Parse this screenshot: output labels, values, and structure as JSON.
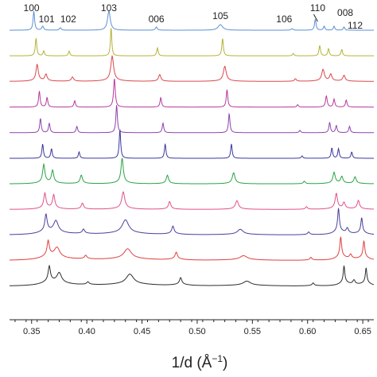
{
  "chart_data": {
    "type": "line",
    "title": "",
    "xlabel": "1/d (Å",
    "xlabel_sup": "−1",
    "xlabel_close": ")",
    "ylabel": "",
    "xlim": [
      0.33,
      0.66
    ],
    "x_ticks": [
      0.35,
      0.4,
      0.45,
      0.5,
      0.55,
      0.6,
      0.65
    ],
    "x_tick_labels": [
      "0.35",
      "0.40",
      "0.45",
      "0.50",
      "0.55",
      "0.60",
      "0.65"
    ],
    "grid": false,
    "legend": "none",
    "peak_labels": [
      {
        "text": "100",
        "x": 0.352
      },
      {
        "text": "101",
        "x": 0.36
      },
      {
        "text": "102",
        "x": 0.376
      },
      {
        "text": "103",
        "x": 0.42
      },
      {
        "text": "006",
        "x": 0.463
      },
      {
        "text": "105",
        "x": 0.521
      },
      {
        "text": "106",
        "x": 0.586
      },
      {
        "text": "110",
        "x": 0.607
      },
      {
        "text": "008",
        "x": 0.624
      },
      {
        "text": "112",
        "x": 0.633
      }
    ],
    "series": [
      {
        "color": "#5b8fd4",
        "baseline": 10,
        "broad": 0.0,
        "peaks": [
          [
            0.352,
            24,
            0.0008
          ],
          [
            0.36,
            5,
            0.001
          ],
          [
            0.376,
            3,
            0.001
          ],
          [
            0.42,
            24,
            0.0015
          ],
          [
            0.463,
            4,
            0.001
          ],
          [
            0.521,
            7,
            0.0025
          ],
          [
            0.586,
            2,
            0.001
          ],
          [
            0.607,
            14,
            0.0008
          ],
          [
            0.615,
            5,
            0.0008
          ],
          [
            0.624,
            5,
            0.0008
          ],
          [
            0.633,
            4,
            0.0008
          ]
        ]
      },
      {
        "color": "#b5b236",
        "baseline": 9,
        "broad": 0.0,
        "peaks": [
          [
            0.354,
            22,
            0.0008
          ],
          [
            0.361,
            6,
            0.0008
          ],
          [
            0.384,
            6,
            0.0008
          ],
          [
            0.422,
            36,
            0.0007
          ],
          [
            0.464,
            10,
            0.0008
          ],
          [
            0.523,
            22,
            0.0008
          ],
          [
            0.587,
            3,
            0.0008
          ],
          [
            0.611,
            13,
            0.0008
          ],
          [
            0.619,
            9,
            0.0008
          ],
          [
            0.631,
            8,
            0.0008
          ]
        ]
      },
      {
        "color": "#d9484c",
        "baseline": 9,
        "broad": 0.06,
        "peaks": [
          [
            0.355,
            20,
            0.0012
          ],
          [
            0.363,
            8,
            0.0012
          ],
          [
            0.387,
            5,
            0.0012
          ],
          [
            0.423,
            30,
            0.0015
          ],
          [
            0.466,
            8,
            0.0012
          ],
          [
            0.525,
            18,
            0.0015
          ],
          [
            0.589,
            3,
            0.001
          ],
          [
            0.614,
            14,
            0.0014
          ],
          [
            0.621,
            8,
            0.0012
          ],
          [
            0.633,
            7,
            0.0012
          ]
        ]
      },
      {
        "color": "#b8399c",
        "baseline": 9,
        "broad": 0.0,
        "peaks": [
          [
            0.357,
            20,
            0.0008
          ],
          [
            0.364,
            12,
            0.0008
          ],
          [
            0.389,
            8,
            0.0008
          ],
          [
            0.425,
            36,
            0.0009
          ],
          [
            0.467,
            12,
            0.0008
          ],
          [
            0.527,
            22,
            0.0008
          ],
          [
            0.591,
            3,
            0.0008
          ],
          [
            0.617,
            14,
            0.0009
          ],
          [
            0.624,
            10,
            0.0008
          ],
          [
            0.635,
            9,
            0.0008
          ]
        ]
      },
      {
        "color": "#8e44ad",
        "baseline": 9,
        "broad": 0.0,
        "peaks": [
          [
            0.358,
            18,
            0.0008
          ],
          [
            0.366,
            12,
            0.0008
          ],
          [
            0.391,
            8,
            0.0008
          ],
          [
            0.427,
            35,
            0.0008
          ],
          [
            0.469,
            12,
            0.0008
          ],
          [
            0.529,
            24,
            0.0008
          ],
          [
            0.593,
            3,
            0.0008
          ],
          [
            0.62,
            13,
            0.0008
          ],
          [
            0.626,
            9,
            0.0008
          ],
          [
            0.638,
            8,
            0.0008
          ]
        ]
      },
      {
        "color": "#3a37a0",
        "baseline": 9,
        "broad": 0.0,
        "peaks": [
          [
            0.36,
            18,
            0.0008
          ],
          [
            0.368,
            12,
            0.0008
          ],
          [
            0.393,
            8,
            0.0008
          ],
          [
            0.43,
            36,
            0.0008
          ],
          [
            0.471,
            18,
            0.0008
          ],
          [
            0.531,
            18,
            0.0008
          ],
          [
            0.595,
            3,
            0.0008
          ],
          [
            0.622,
            13,
            0.0008
          ],
          [
            0.628,
            12,
            0.0008
          ],
          [
            0.64,
            8,
            0.0008
          ]
        ]
      },
      {
        "color": "#2aa246",
        "baseline": 9,
        "broad": 0.08,
        "peaks": [
          [
            0.361,
            22,
            0.0012
          ],
          [
            0.369,
            15,
            0.0012
          ],
          [
            0.395,
            10,
            0.0012
          ],
          [
            0.432,
            30,
            0.0012
          ],
          [
            0.473,
            10,
            0.0012
          ],
          [
            0.533,
            13,
            0.0014
          ],
          [
            0.597,
            3,
            0.001
          ],
          [
            0.624,
            13,
            0.0012
          ],
          [
            0.631,
            8,
            0.0012
          ],
          [
            0.643,
            8,
            0.0012
          ]
        ]
      },
      {
        "color": "#e0508a",
        "baseline": 10,
        "broad": 0.1,
        "peaks": [
          [
            0.362,
            18,
            0.0012
          ],
          [
            0.37,
            16,
            0.0012
          ],
          [
            0.396,
            7,
            0.0012
          ],
          [
            0.433,
            20,
            0.0016
          ],
          [
            0.475,
            9,
            0.0012
          ],
          [
            0.536,
            10,
            0.0016
          ],
          [
            0.599,
            3,
            0.001
          ],
          [
            0.626,
            18,
            0.0012
          ],
          [
            0.633,
            7,
            0.0012
          ],
          [
            0.646,
            10,
            0.0012
          ]
        ]
      },
      {
        "color": "#4a3f9c",
        "baseline": 10,
        "broad": 0.18,
        "peaks": [
          [
            0.363,
            20,
            0.0012
          ],
          [
            0.372,
            14,
            0.0025
          ],
          [
            0.397,
            5,
            0.0012
          ],
          [
            0.435,
            16,
            0.0035
          ],
          [
            0.478,
            9,
            0.0012
          ],
          [
            0.539,
            6,
            0.003
          ],
          [
            0.601,
            3,
            0.001
          ],
          [
            0.628,
            28,
            0.0009
          ],
          [
            0.636,
            6,
            0.0012
          ],
          [
            0.649,
            18,
            0.0009
          ]
        ]
      },
      {
        "color": "#e03f3f",
        "baseline": 10,
        "broad": 0.22,
        "peaks": [
          [
            0.365,
            18,
            0.0012
          ],
          [
            0.373,
            12,
            0.003
          ],
          [
            0.399,
            4,
            0.0012
          ],
          [
            0.437,
            12,
            0.004
          ],
          [
            0.481,
            8,
            0.0012
          ],
          [
            0.542,
            5,
            0.004
          ],
          [
            0.603,
            3,
            0.001
          ],
          [
            0.63,
            24,
            0.0009
          ],
          [
            0.639,
            5,
            0.0012
          ],
          [
            0.651,
            20,
            0.0009
          ]
        ]
      },
      {
        "color": "#2d2d2d",
        "baseline": 10,
        "broad": 0.25,
        "peaks": [
          [
            0.366,
            18,
            0.0012
          ],
          [
            0.375,
            12,
            0.0025
          ],
          [
            0.401,
            3,
            0.0012
          ],
          [
            0.439,
            12,
            0.004
          ],
          [
            0.485,
            8,
            0.0012
          ],
          [
            0.545,
            5,
            0.004
          ],
          [
            0.605,
            3,
            0.001
          ],
          [
            0.633,
            20,
            0.0008
          ],
          [
            0.642,
            5,
            0.0012
          ],
          [
            0.653,
            18,
            0.0008
          ]
        ]
      }
    ]
  }
}
